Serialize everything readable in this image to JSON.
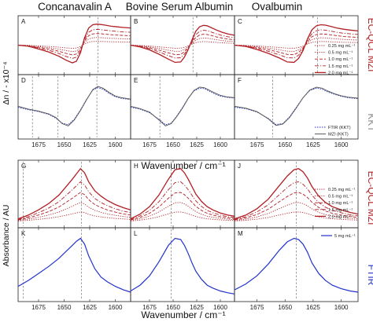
{
  "colors": {
    "ec_qcl_mzi": "#b11f24",
    "kkt": "#8a8a8a",
    "ftir": "#2233cc",
    "mzi_kkt": "#5a5a5a"
  },
  "chart_data": {
    "type": "line",
    "column_titles": [
      "Concanavalin A",
      "Bovine Serum Albumin",
      "Ovalbumin"
    ],
    "xlabel": "Wavenumber / cm⁻¹",
    "xlim": [
      1695,
      1585
    ],
    "x_reversed": true,
    "xticks": [
      1675,
      1650,
      1625,
      1600
    ],
    "top_ylabel": "Δn / - x10⁻⁴",
    "bottom_ylabel": "Absorbance / AU",
    "row_labels": {
      "top_mzi": "EC-QCL MZI",
      "top_kkt": "KKT",
      "bottom_mzi": "EC-QCL MZI",
      "bottom_ftir": "FTIR"
    },
    "concentrations_legend": [
      "0.25 mg mL⁻¹",
      "0.5 mg mL⁻¹",
      "1.0 mg mL⁻¹",
      "1.5 mg mL⁻¹",
      "2.0 mg mL⁻¹"
    ],
    "kkt_legend": [
      "FTIR (KKT)",
      "MZI (KKT)"
    ],
    "ftir_legend": [
      "5 mg mL⁻¹"
    ],
    "panels": [
      {
        "label": "A",
        "group": "dn_mzi",
        "protein": "Concanavalin A",
        "dashed_lines": [
          1617
        ]
      },
      {
        "label": "B",
        "group": "dn_mzi",
        "protein": "Bovine Serum Albumin",
        "dashed_lines": [
          1629
        ]
      },
      {
        "label": "C",
        "group": "dn_mzi",
        "protein": "Ovalbumin",
        "dashed_lines": [
          1621
        ]
      },
      {
        "label": "D",
        "group": "kkt",
        "protein": "Concanavalin A",
        "dashed_lines": [
          1681,
          1656,
          1618
        ]
      },
      {
        "label": "E",
        "group": "kkt",
        "protein": "Bovine Serum Albumin",
        "dashed_lines": [
          1664
        ]
      },
      {
        "label": "F",
        "group": "kkt",
        "protein": "Ovalbumin",
        "dashed_lines": [
          1661
        ]
      },
      {
        "label": "G",
        "group": "abs_mzi",
        "protein": "Concanavalin A",
        "dashed_lines": [
          1690,
          1633
        ]
      },
      {
        "label": "H",
        "group": "abs_mzi",
        "protein": "Bovine Serum Albumin",
        "dashed_lines": [
          1652
        ]
      },
      {
        "label": "J",
        "group": "abs_mzi",
        "protein": "Ovalbumin",
        "dashed_lines": [
          1640
        ]
      },
      {
        "label": "K",
        "group": "ftir",
        "protein": "Concanavalin A",
        "dashed_lines": [
          1690,
          1633
        ]
      },
      {
        "label": "L",
        "group": "ftir",
        "protein": "Bovine Serum Albumin",
        "dashed_lines": [
          1652
        ]
      },
      {
        "label": "M",
        "group": "ftir",
        "protein": "Ovalbumin",
        "dashed_lines": [
          1640
        ]
      }
    ],
    "series": [
      {
        "name": "0.25 mg mL⁻¹",
        "scale": 0.18,
        "style": "dotted"
      },
      {
        "name": "0.5 mg mL⁻¹",
        "scale": 0.36,
        "style": "dotted"
      },
      {
        "name": "1.0 mg mL⁻¹",
        "scale": 0.55,
        "style": "dashed"
      },
      {
        "name": "1.5 mg mL⁻¹",
        "scale": 0.75,
        "style": "dashdot"
      },
      {
        "name": "2.0 mg mL⁻¹",
        "scale": 1.0,
        "style": "solid"
      }
    ],
    "curves": {
      "dn_mzi": {
        "x": [
          1695,
          1685,
          1675,
          1665,
          1655,
          1648,
          1642,
          1638,
          1634,
          1630,
          1626,
          1622,
          1618,
          1614,
          1610,
          1604,
          1598,
          1592,
          1585
        ],
        "ylim": [
          -1.15,
          1.15
        ],
        "shapes": [
          [
            0.0,
            -0.05,
            -0.18,
            -0.32,
            -0.52,
            -0.7,
            -0.82,
            -0.75,
            -0.35,
            0.35,
            0.8,
            0.95,
            0.98,
            0.96,
            0.93,
            0.88,
            0.85,
            0.82,
            0.8
          ],
          [
            0.0,
            -0.08,
            -0.22,
            -0.42,
            -0.65,
            -0.8,
            -0.78,
            -0.55,
            -0.2,
            0.25,
            0.65,
            0.85,
            0.92,
            0.9,
            0.82,
            0.7,
            0.6,
            0.52,
            0.46
          ],
          [
            0.0,
            -0.06,
            -0.2,
            -0.38,
            -0.6,
            -0.78,
            -0.8,
            -0.62,
            -0.25,
            0.3,
            0.72,
            0.9,
            0.95,
            0.93,
            0.88,
            0.8,
            0.74,
            0.7,
            0.66
          ]
        ]
      },
      "kkt": {
        "x": [
          1695,
          1685,
          1675,
          1665,
          1658,
          1652,
          1646,
          1640,
          1634,
          1628,
          1622,
          1617,
          1612,
          1606,
          1600,
          1594,
          1585
        ],
        "ylim": [
          -1.15,
          1.15
        ],
        "mzi": [
          [
            0.02,
            -0.1,
            -0.18,
            -0.3,
            -0.45,
            -0.7,
            -0.8,
            -0.55,
            -0.15,
            0.3,
            0.72,
            0.85,
            0.78,
            0.6,
            0.45,
            0.38,
            0.32
          ],
          [
            0.02,
            -0.08,
            -0.22,
            -0.55,
            -0.8,
            -0.7,
            -0.4,
            -0.05,
            0.35,
            0.68,
            0.82,
            0.8,
            0.7,
            0.58,
            0.48,
            0.42,
            0.38
          ],
          [
            0.02,
            -0.06,
            -0.2,
            -0.5,
            -0.78,
            -0.72,
            -0.45,
            -0.05,
            0.38,
            0.7,
            0.82,
            0.78,
            0.66,
            0.55,
            0.46,
            0.4,
            0.36
          ]
        ],
        "ftir": [
          [
            -0.02,
            -0.12,
            -0.2,
            -0.32,
            -0.48,
            -0.68,
            -0.75,
            -0.52,
            -0.12,
            0.32,
            0.7,
            0.8,
            0.74,
            0.56,
            0.42,
            0.35,
            0.3
          ],
          [
            -0.02,
            -0.1,
            -0.25,
            -0.52,
            -0.75,
            -0.68,
            -0.38,
            -0.02,
            0.36,
            0.66,
            0.78,
            0.76,
            0.66,
            0.54,
            0.45,
            0.4,
            0.36
          ],
          [
            -0.02,
            -0.08,
            -0.22,
            -0.48,
            -0.74,
            -0.7,
            -0.42,
            -0.02,
            0.38,
            0.68,
            0.78,
            0.74,
            0.62,
            0.52,
            0.44,
            0.38,
            0.34
          ]
        ]
      },
      "abs_mzi": {
        "x": [
          1695,
          1685,
          1675,
          1665,
          1655,
          1648,
          1642,
          1638,
          1634,
          1630,
          1626,
          1620,
          1614,
          1608,
          1600,
          1592,
          1585
        ],
        "ylim": [
          0,
          1.1
        ],
        "shapes": [
          [
            0.05,
            0.12,
            0.22,
            0.34,
            0.5,
            0.66,
            0.8,
            0.9,
            1.0,
            0.92,
            0.75,
            0.58,
            0.48,
            0.4,
            0.32,
            0.26,
            0.22
          ],
          [
            0.05,
            0.14,
            0.28,
            0.5,
            0.8,
            0.98,
            1.0,
            0.92,
            0.8,
            0.66,
            0.52,
            0.38,
            0.28,
            0.22,
            0.16,
            0.12,
            0.1
          ],
          [
            0.05,
            0.12,
            0.24,
            0.42,
            0.68,
            0.86,
            0.98,
            1.0,
            0.94,
            0.82,
            0.66,
            0.48,
            0.36,
            0.28,
            0.22,
            0.17,
            0.14
          ]
        ]
      },
      "ftir": {
        "x": [
          1695,
          1685,
          1675,
          1665,
          1655,
          1648,
          1642,
          1638,
          1634,
          1630,
          1626,
          1620,
          1614,
          1608,
          1600,
          1592,
          1585
        ],
        "ylim": [
          0,
          1.1
        ],
        "shapes": [
          [
            0.18,
            0.28,
            0.4,
            0.52,
            0.66,
            0.78,
            0.88,
            0.95,
            1.0,
            0.9,
            0.7,
            0.48,
            0.34,
            0.26,
            0.18,
            0.12,
            0.08
          ],
          [
            0.1,
            0.2,
            0.36,
            0.6,
            0.88,
            1.0,
            0.98,
            0.88,
            0.74,
            0.58,
            0.44,
            0.3,
            0.2,
            0.15,
            0.1,
            0.07,
            0.05
          ],
          [
            0.12,
            0.22,
            0.36,
            0.56,
            0.8,
            0.94,
            1.0,
            0.98,
            0.9,
            0.76,
            0.58,
            0.4,
            0.28,
            0.2,
            0.14,
            0.1,
            0.08
          ]
        ]
      }
    }
  }
}
